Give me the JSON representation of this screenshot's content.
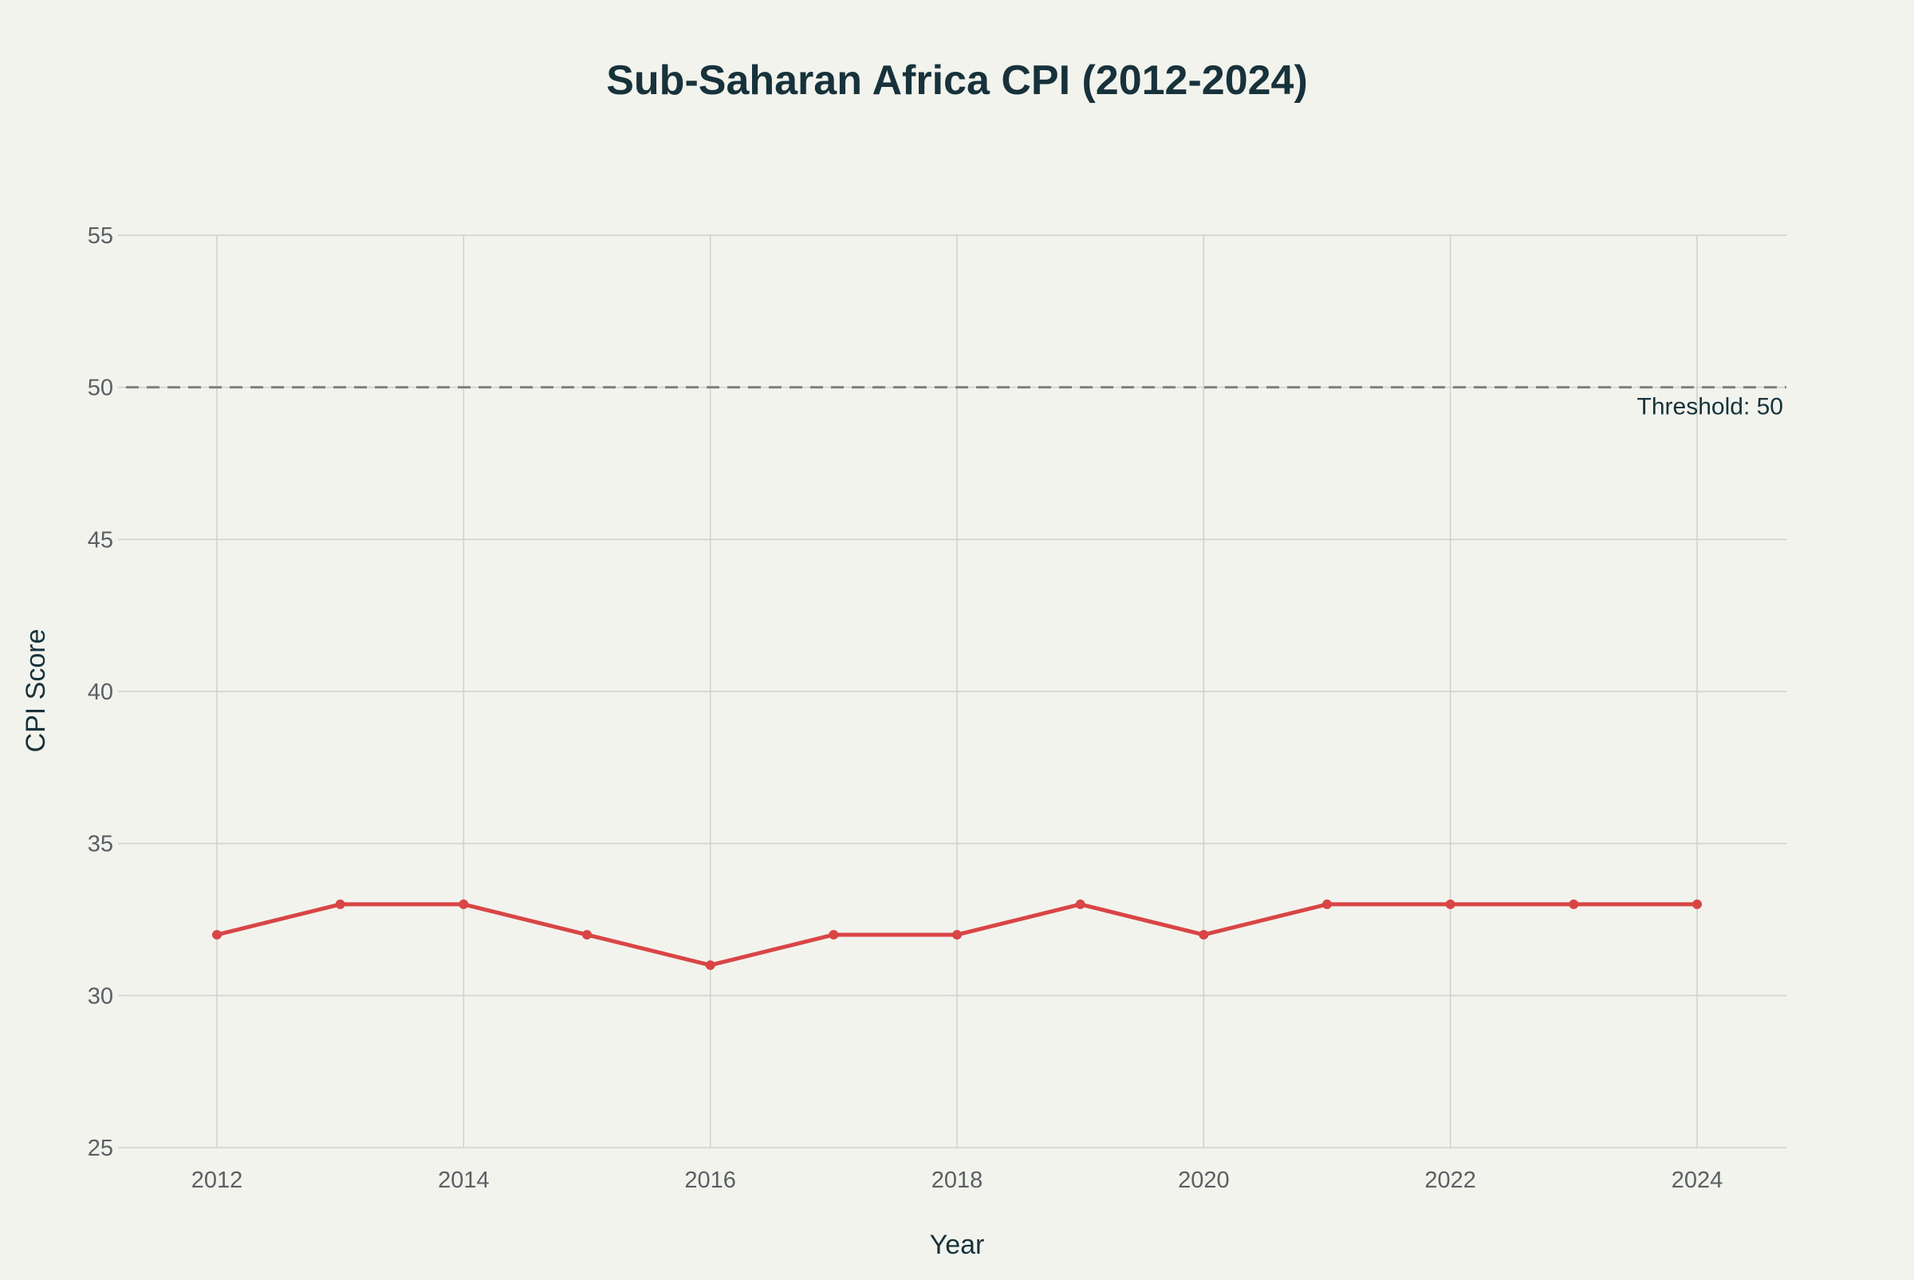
{
  "chart_data": {
    "type": "line",
    "title": "Sub-Saharan Africa CPI (2012-2024)",
    "xlabel": "Year",
    "ylabel": "CPI Score",
    "x": [
      2012,
      2013,
      2014,
      2015,
      2016,
      2017,
      2018,
      2019,
      2020,
      2021,
      2022,
      2023,
      2024
    ],
    "series": [
      {
        "name": "Sub-Saharan Africa",
        "values": [
          32,
          33,
          33,
          32,
          31,
          32,
          32,
          33,
          32,
          33,
          33,
          33,
          33
        ],
        "color": "#d94444"
      }
    ],
    "xlim": [
      2011.26,
      2024.7
    ],
    "ylim": [
      25,
      55
    ],
    "xticks": [
      "2012",
      "2014",
      "2016",
      "2018",
      "2020",
      "2022",
      "2024"
    ],
    "yticks": [
      "25",
      "30",
      "35",
      "40",
      "45",
      "50",
      "55"
    ],
    "grid": true,
    "threshold": {
      "value": 50,
      "label": "Threshold: 50",
      "color": "#808080"
    }
  }
}
